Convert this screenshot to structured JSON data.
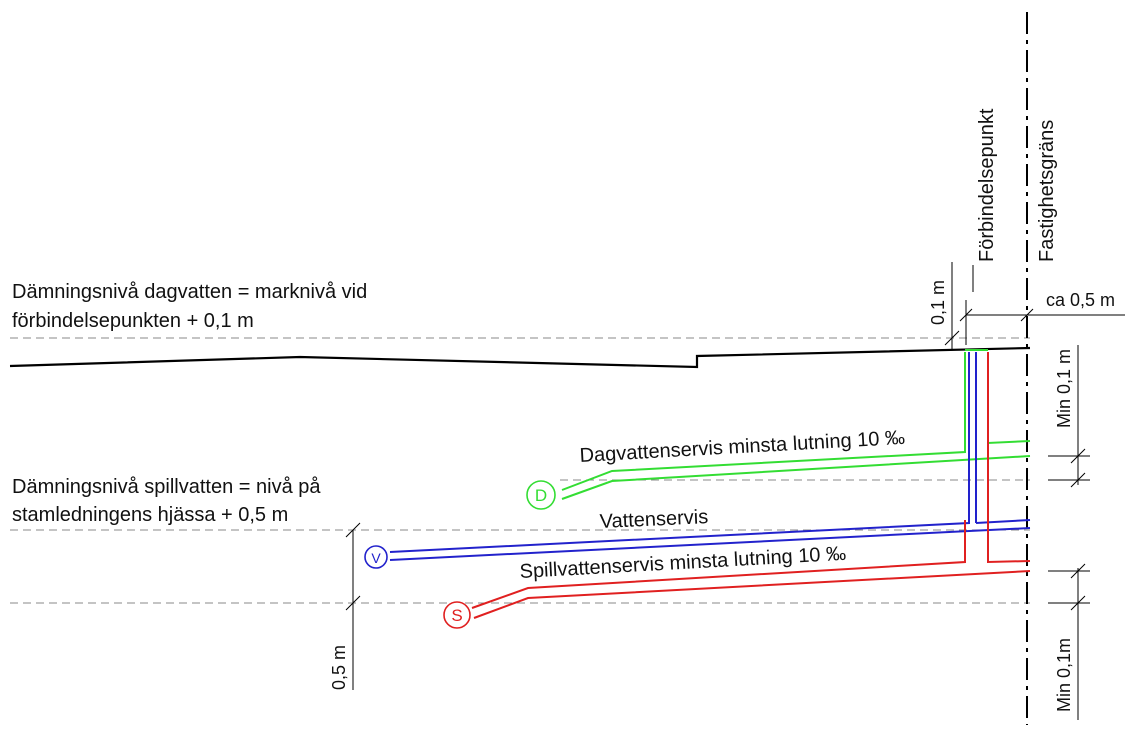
{
  "labels": {
    "connection_point": "Förbindelsepunkt",
    "property_boundary": "Fastighetsgräns",
    "storm_level_line1": "Dämningsnivå dagvatten = marknivå vid",
    "storm_level_line2": "förbindelsepunkten + 0,1 m",
    "sewage_level_line1": "Dämningsnivå spillvatten = nivå på",
    "sewage_level_line2": "stamledningens hjässa + 0,5 m",
    "storm_service": "Dagvattenservis minsta lutning 10 ‰",
    "water_service": "Vattenservis",
    "sewage_service": "Spillvattenservis minsta lutning 10 ‰"
  },
  "dimensions": {
    "d_0_1m": "0,1 m",
    "d_ca_0_5m": "ca 0,5 m",
    "d_min_0_1m_upper": "Min 0,1 m",
    "d_0_5m": "0,5 m",
    "d_min_0_1m_lower": "Min 0,1m"
  },
  "pipe_markers": {
    "storm": "D",
    "water": "V",
    "sewage": "S"
  },
  "colors": {
    "storm": "#33dd33",
    "water": "#2222cc",
    "sewage": "#e02020",
    "ground": "#000000",
    "dashed": "#888888"
  }
}
